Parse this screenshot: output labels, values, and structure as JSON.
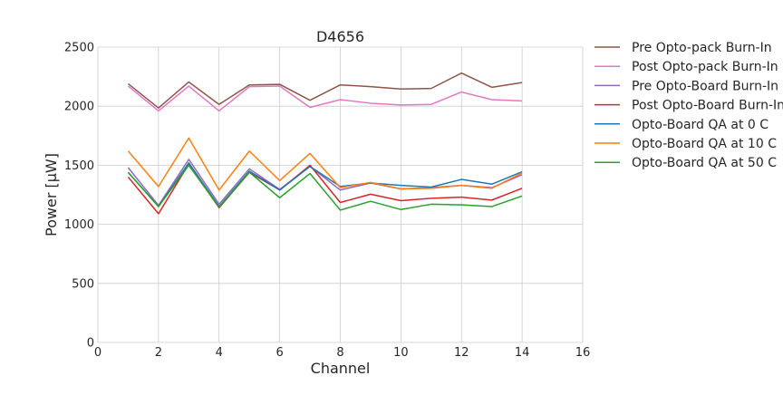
{
  "chart_data": {
    "type": "line",
    "title": "D4656",
    "xlabel": "Channel",
    "ylabel": "Power [μW]",
    "xlim": [
      0,
      16
    ],
    "ylim": [
      0,
      2500
    ],
    "x_ticks": [
      0,
      2,
      4,
      6,
      8,
      10,
      12,
      14,
      16
    ],
    "y_ticks": [
      0,
      500,
      1000,
      1500,
      2000,
      2500
    ],
    "x_tick_labels": [
      "0",
      "2",
      "4",
      "6",
      "8",
      "10",
      "12",
      "14",
      "16"
    ],
    "y_tick_labels": [
      "0",
      "500",
      "1000",
      "1500",
      "2000",
      "2500"
    ],
    "grid": true,
    "legend_position": "outside-right",
    "x": [
      1,
      2,
      3,
      4,
      5,
      6,
      7,
      8,
      9,
      10,
      11,
      12,
      13,
      14
    ],
    "series": [
      {
        "name": "Pre Opto-pack Burn-In",
        "color": "#8c564b",
        "values": [
          2190,
          1985,
          2205,
          2015,
          2180,
          2185,
          2050,
          2180,
          2165,
          2145,
          2150,
          2280,
          2160,
          2200
        ]
      },
      {
        "name": "Post Opto-pack Burn-In",
        "color": "#e377c2",
        "values": [
          2170,
          1960,
          2170,
          1960,
          2165,
          2170,
          1990,
          2055,
          2025,
          2010,
          2015,
          2120,
          2055,
          2045
        ]
      },
      {
        "name": "Pre Opto-Board Burn-In",
        "color": "#9467bd",
        "values": [
          1480,
          1160,
          1550,
          1170,
          1470,
          1295,
          1490,
          1290,
          1350,
          1300,
          1310,
          1330,
          1310,
          1420
        ]
      },
      {
        "name": "Post Opto-Board Burn-In",
        "color": "#d62728",
        "values": [
          1400,
          1090,
          1510,
          1140,
          1440,
          1290,
          1500,
          1185,
          1255,
          1200,
          1220,
          1230,
          1205,
          1305
        ]
      },
      {
        "name": "Opto-Board QA at 0 C",
        "color": "#1f77b4",
        "values": [
          1440,
          1150,
          1520,
          1150,
          1450,
          1290,
          1490,
          1320,
          1350,
          1330,
          1315,
          1380,
          1340,
          1445
        ]
      },
      {
        "name": "Opto-Board QA at 10 C",
        "color": "#ff7f0e",
        "values": [
          1620,
          1320,
          1730,
          1290,
          1620,
          1370,
          1600,
          1310,
          1355,
          1300,
          1305,
          1330,
          1305,
          1435
        ]
      },
      {
        "name": "Opto-Board QA at 50 C",
        "color": "#2ca02c",
        "values": [
          1440,
          1150,
          1500,
          1145,
          1440,
          1225,
          1430,
          1120,
          1195,
          1125,
          1170,
          1165,
          1150,
          1240
        ]
      }
    ]
  }
}
